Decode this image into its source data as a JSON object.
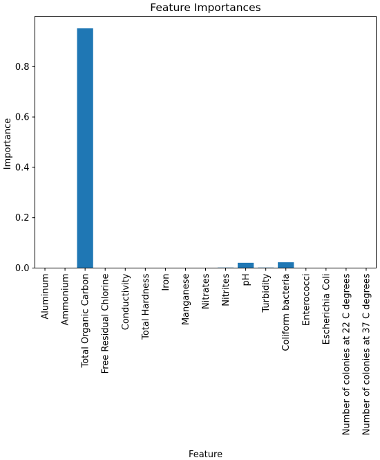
{
  "chart_data": {
    "type": "bar",
    "title": "Feature Importances",
    "xlabel": "Feature",
    "ylabel": "Importance",
    "categories": [
      "Aluminum",
      "Ammonium",
      "Total Organic Carbon",
      "Free Residual Chlorine",
      "Conductivity",
      "Total Hardness",
      "Iron",
      "Manganese",
      "Nitrates",
      "Nitrites",
      "pH",
      "Turbidity",
      "Coliform bacteria",
      "Enterococci",
      "Escherichia Coli",
      "Number of colonies at 22 C degrees",
      "Number of colonies at 37 C degrees"
    ],
    "values": [
      0.0,
      0.0,
      0.952,
      0.0,
      0.0,
      0.0,
      0.0,
      0.0,
      0.0,
      0.002,
      0.021,
      0.002,
      0.023,
      0.0,
      0.0,
      0.0,
      0.0
    ],
    "ylim": [
      0.0,
      1.0
    ],
    "yticks": [
      0.0,
      0.2,
      0.4,
      0.6,
      0.8
    ],
    "ytick_labels": [
      "0.0",
      "0.2",
      "0.4",
      "0.6",
      "0.8"
    ],
    "bar_color": "#1f77b4",
    "grid": false,
    "legend": "none"
  }
}
